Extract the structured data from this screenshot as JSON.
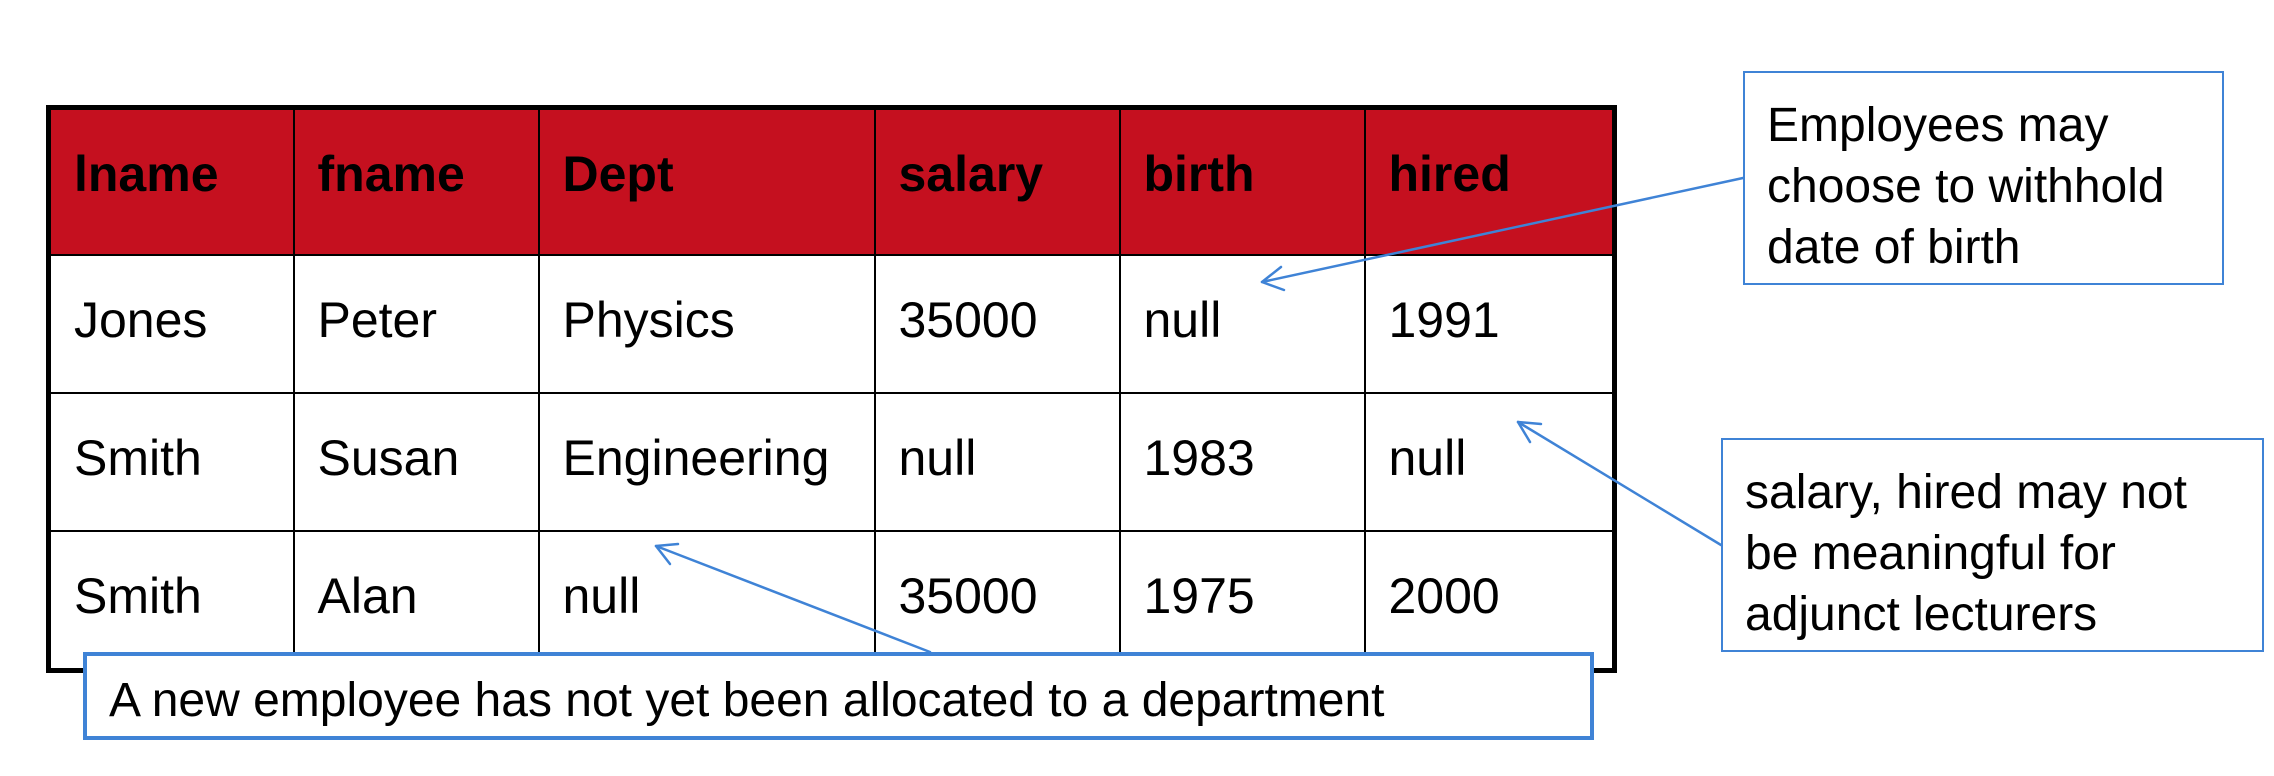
{
  "table": {
    "headers": [
      "lname",
      "fname",
      "Dept",
      "salary",
      "birth",
      "hired"
    ],
    "rows": [
      [
        "Jones",
        "Peter",
        "Physics",
        "35000",
        "null",
        "1991"
      ],
      [
        "Smith",
        "Susan",
        "Engineering",
        "null",
        "1983",
        "null"
      ],
      [
        "Smith",
        "Alan",
        "null",
        "35000",
        "1975",
        "2000"
      ]
    ]
  },
  "callouts": {
    "birth": [
      "Employees may",
      "choose to withhold",
      "date of birth"
    ],
    "salary": [
      "salary, hired may not",
      "be meaningful for",
      "adjunct lecturers"
    ],
    "dept": "A new employee has not yet been allocated to a department"
  },
  "colors": {
    "header_fill": "#c5101f",
    "callout_border": "#3f83d6",
    "table_border": "#000000"
  }
}
